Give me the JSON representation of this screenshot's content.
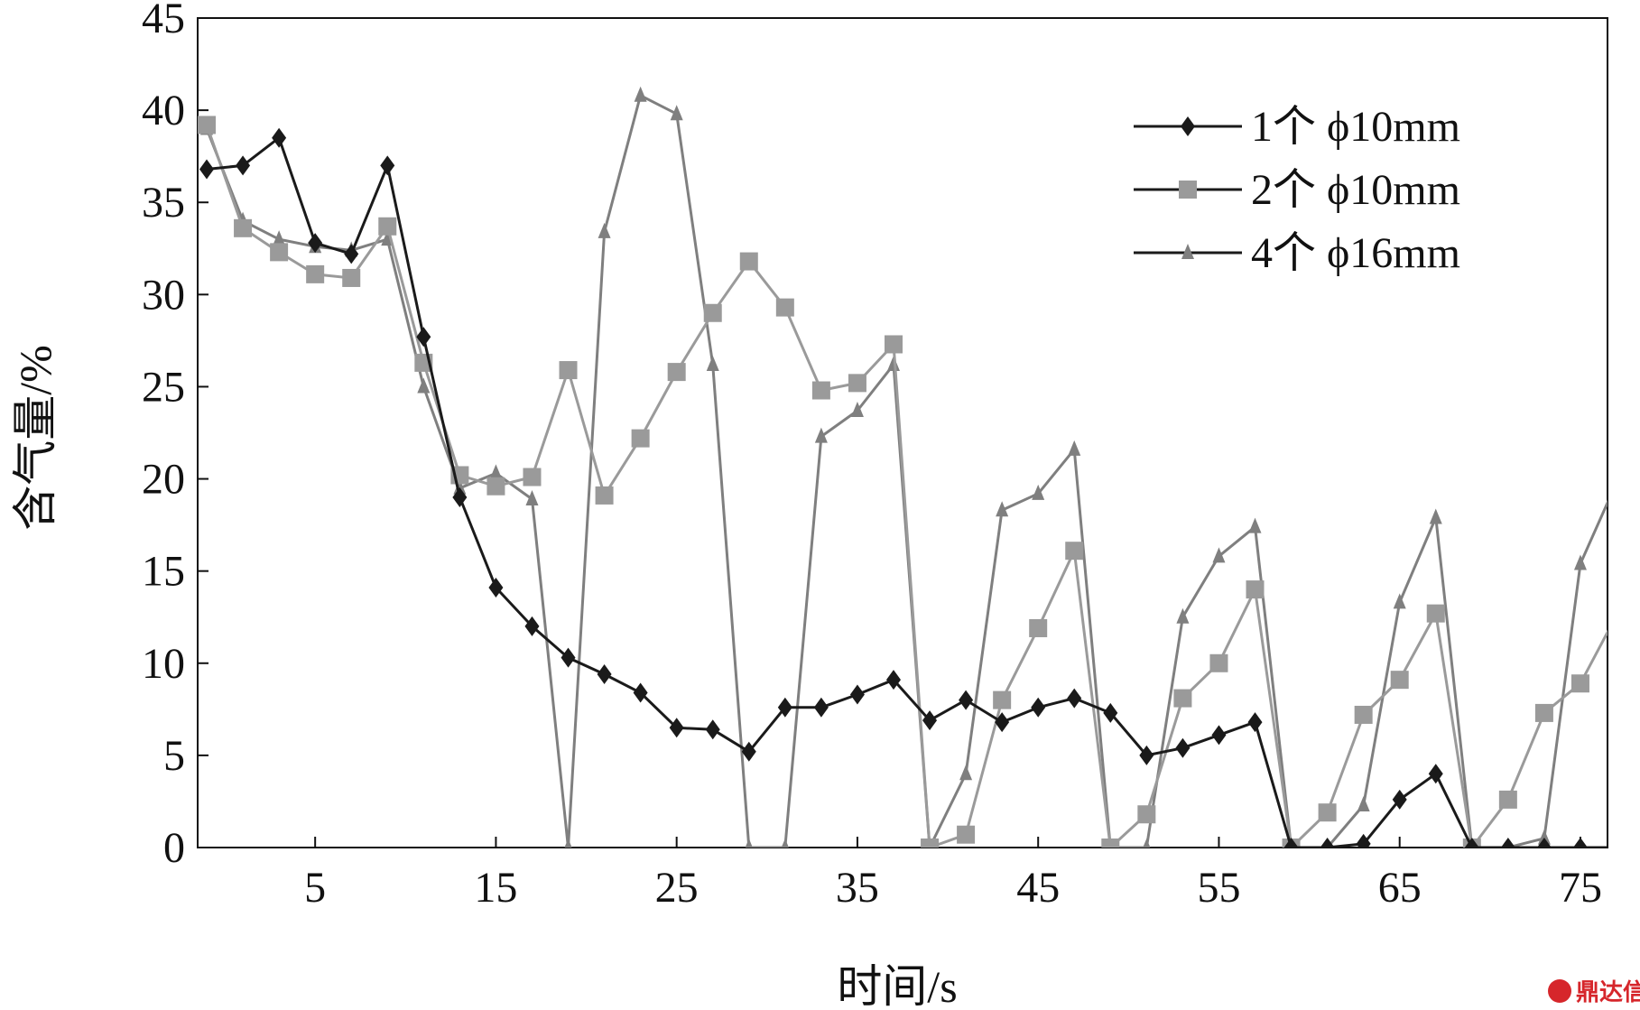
{
  "chart_data": {
    "type": "line",
    "xlabel": "时间/s",
    "ylabel": "含气量/%",
    "xlim": [
      -1.5,
      76.5
    ],
    "ylim": [
      0,
      45
    ],
    "xticks": [
      5,
      15,
      25,
      35,
      45,
      55,
      65,
      75
    ],
    "yticks": [
      0,
      5,
      10,
      15,
      20,
      25,
      30,
      35,
      40,
      45
    ],
    "x": [
      -1,
      1,
      3,
      5,
      7,
      9,
      11,
      13,
      15,
      17,
      19,
      21,
      23,
      25,
      27,
      29,
      31,
      33,
      35,
      37,
      39,
      41,
      43,
      45,
      47,
      49,
      51,
      53,
      55,
      57,
      59,
      61,
      63,
      65,
      67,
      69,
      71,
      73,
      75,
      77
    ],
    "grid": false,
    "legend_position": "top-right",
    "series": [
      {
        "name": "1个 ϕ10mm",
        "marker": "diamond",
        "color": "#1a1a1a",
        "values": [
          36.8,
          37.0,
          38.5,
          32.8,
          32.2,
          37.0,
          27.7,
          19.0,
          14.1,
          12.0,
          10.3,
          9.4,
          8.4,
          6.5,
          6.4,
          5.2,
          7.6,
          7.6,
          8.3,
          9.1,
          6.9,
          8.0,
          6.8,
          7.6,
          8.1,
          7.3,
          5.0,
          5.4,
          6.1,
          6.8,
          0.0,
          0.0,
          0.2,
          2.6,
          4.0,
          0.0,
          0.0,
          0.0,
          0.0,
          0.0
        ]
      },
      {
        "name": "2个 ϕ10mm",
        "marker": "square",
        "color": "#9a9a9a",
        "values": [
          39.2,
          33.6,
          32.3,
          31.1,
          30.9,
          33.7,
          26.3,
          20.2,
          19.6,
          20.1,
          25.9,
          19.1,
          22.2,
          25.8,
          29.0,
          31.8,
          29.3,
          24.8,
          25.2,
          27.3,
          0.0,
          0.7,
          8.0,
          11.9,
          16.1,
          0.0,
          1.8,
          8.1,
          10.0,
          14.0,
          0.0,
          1.9,
          7.2,
          9.1,
          12.7,
          0.0,
          2.6,
          7.3,
          8.9,
          12.6
        ]
      },
      {
        "name": "4个 ϕ16mm",
        "marker": "triangle",
        "color": "#7f7f7f",
        "values": [
          39.0,
          34.0,
          33.0,
          32.6,
          32.4,
          33.0,
          25.0,
          19.5,
          20.3,
          18.9,
          0.0,
          33.4,
          40.8,
          39.8,
          26.2,
          0.0,
          0.0,
          22.3,
          23.7,
          26.2,
          0.0,
          4.0,
          18.3,
          19.2,
          21.6,
          0.0,
          0.0,
          12.5,
          15.8,
          17.4,
          0.0,
          0.0,
          2.3,
          13.3,
          17.9,
          0.0,
          0.0,
          0.5,
          15.4,
          19.8
        ]
      }
    ]
  },
  "watermark": {
    "text": "鼎达信",
    "color": "#d6262b"
  }
}
